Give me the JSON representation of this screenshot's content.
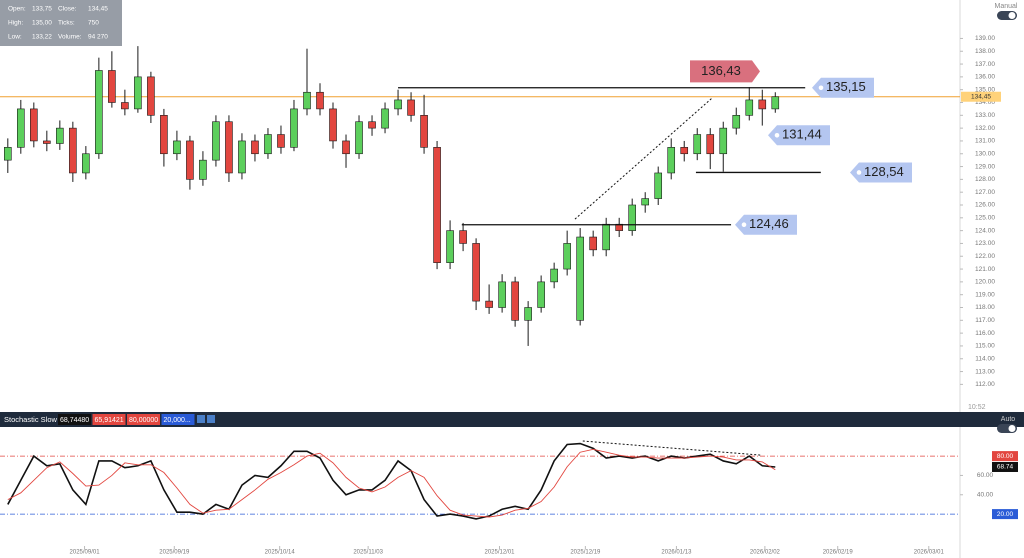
{
  "chart_data": [
    {
      "type": "candlestick",
      "colors": {
        "up": "#5ccf5c",
        "down": "#e2463f",
        "outline": "#1a1a1a",
        "last_price": "#f0a030"
      },
      "candles": [
        {
          "open": 129.5,
          "high": 131.2,
          "low": 128.5,
          "close": 130.5
        },
        {
          "open": 130.5,
          "high": 134.2,
          "low": 130.0,
          "close": 133.5
        },
        {
          "open": 133.5,
          "high": 134.0,
          "low": 130.5,
          "close": 131.0
        },
        {
          "open": 131.0,
          "high": 131.8,
          "low": 130.2,
          "close": 130.8
        },
        {
          "open": 130.8,
          "high": 132.6,
          "low": 130.3,
          "close": 132.0
        },
        {
          "open": 132.0,
          "high": 132.5,
          "low": 127.8,
          "close": 128.5
        },
        {
          "open": 128.5,
          "high": 130.6,
          "low": 128.0,
          "close": 130.0
        },
        {
          "open": 130.0,
          "high": 137.5,
          "low": 129.6,
          "close": 136.5
        },
        {
          "open": 136.5,
          "high": 138.0,
          "low": 133.6,
          "close": 134.0
        },
        {
          "open": 134.0,
          "high": 135.0,
          "low": 133.0,
          "close": 133.5
        },
        {
          "open": 133.5,
          "high": 138.4,
          "low": 133.2,
          "close": 136.0
        },
        {
          "open": 136.0,
          "high": 136.4,
          "low": 132.4,
          "close": 133.0
        },
        {
          "open": 133.0,
          "high": 133.5,
          "low": 129.0,
          "close": 130.0
        },
        {
          "open": 130.0,
          "high": 131.8,
          "low": 129.5,
          "close": 131.0
        },
        {
          "open": 131.0,
          "high": 131.4,
          "low": 127.2,
          "close": 128.0
        },
        {
          "open": 128.0,
          "high": 130.2,
          "low": 127.5,
          "close": 129.5
        },
        {
          "open": 129.5,
          "high": 133.0,
          "low": 129.0,
          "close": 132.5
        },
        {
          "open": 132.5,
          "high": 133.0,
          "low": 127.8,
          "close": 128.5
        },
        {
          "open": 128.5,
          "high": 131.6,
          "low": 128.0,
          "close": 131.0
        },
        {
          "open": 131.0,
          "high": 131.5,
          "low": 129.4,
          "close": 130.0
        },
        {
          "open": 130.0,
          "high": 132.0,
          "low": 129.6,
          "close": 131.5
        },
        {
          "open": 131.5,
          "high": 132.2,
          "low": 130.0,
          "close": 130.5
        },
        {
          "open": 130.5,
          "high": 134.2,
          "low": 130.2,
          "close": 133.5
        },
        {
          "open": 133.5,
          "high": 138.2,
          "low": 133.0,
          "close": 134.8
        },
        {
          "open": 134.8,
          "high": 135.5,
          "low": 133.0,
          "close": 133.5
        },
        {
          "open": 133.5,
          "high": 134.0,
          "low": 130.4,
          "close": 131.0
        },
        {
          "open": 131.0,
          "high": 131.5,
          "low": 128.9,
          "close": 130.0
        },
        {
          "open": 130.0,
          "high": 133.0,
          "low": 129.6,
          "close": 132.5
        },
        {
          "open": 132.5,
          "high": 133.0,
          "low": 131.4,
          "close": 132.0
        },
        {
          "open": 132.0,
          "high": 134.0,
          "low": 131.6,
          "close": 133.5
        },
        {
          "open": 133.5,
          "high": 135.0,
          "low": 133.0,
          "close": 134.2
        },
        {
          "open": 134.2,
          "high": 134.8,
          "low": 132.5,
          "close": 133.0
        },
        {
          "open": 133.0,
          "high": 134.6,
          "low": 130.0,
          "close": 130.5
        },
        {
          "open": 130.5,
          "high": 131.0,
          "low": 121.0,
          "close": 121.5
        },
        {
          "open": 121.5,
          "high": 124.8,
          "low": 121.0,
          "close": 124.0
        },
        {
          "open": 124.0,
          "high": 124.6,
          "low": 122.4,
          "close": 123.0
        },
        {
          "open": 123.0,
          "high": 123.4,
          "low": 117.8,
          "close": 118.5
        },
        {
          "open": 118.5,
          "high": 119.8,
          "low": 117.5,
          "close": 118.0
        },
        {
          "open": 118.0,
          "high": 120.6,
          "low": 117.6,
          "close": 120.0
        },
        {
          "open": 120.0,
          "high": 120.4,
          "low": 116.5,
          "close": 117.0
        },
        {
          "open": 117.0,
          "high": 118.5,
          "low": 115.0,
          "close": 118.0
        },
        {
          "open": 118.0,
          "high": 120.5,
          "low": 117.6,
          "close": 120.0
        },
        {
          "open": 120.0,
          "high": 121.5,
          "low": 119.5,
          "close": 121.0
        },
        {
          "open": 121.0,
          "high": 124.0,
          "low": 120.5,
          "close": 123.0
        },
        {
          "open": 117.0,
          "high": 124.2,
          "low": 116.6,
          "close": 123.5
        },
        {
          "open": 123.5,
          "high": 124.0,
          "low": 122.0,
          "close": 122.5
        },
        {
          "open": 122.5,
          "high": 125.0,
          "low": 122.0,
          "close": 124.5
        },
        {
          "open": 124.5,
          "high": 125.0,
          "low": 123.5,
          "close": 124.0
        },
        {
          "open": 124.0,
          "high": 126.5,
          "low": 123.6,
          "close": 126.0
        },
        {
          "open": 126.0,
          "high": 127.0,
          "low": 125.4,
          "close": 126.5
        },
        {
          "open": 126.5,
          "high": 129.0,
          "low": 126.0,
          "close": 128.5
        },
        {
          "open": 128.5,
          "high": 131.2,
          "low": 128.0,
          "close": 130.5
        },
        {
          "open": 130.5,
          "high": 131.0,
          "low": 129.4,
          "close": 130.0
        },
        {
          "open": 130.0,
          "high": 132.0,
          "low": 129.5,
          "close": 131.5
        },
        {
          "open": 131.5,
          "high": 132.0,
          "low": 128.8,
          "close": 130.0
        },
        {
          "open": 130.0,
          "high": 132.5,
          "low": 128.6,
          "close": 132.0
        },
        {
          "open": 132.0,
          "high": 133.6,
          "low": 131.5,
          "close": 133.0
        },
        {
          "open": 133.0,
          "high": 135.2,
          "low": 132.6,
          "close": 134.2
        },
        {
          "open": 134.2,
          "high": 135.0,
          "low": 132.2,
          "close": 133.5
        },
        {
          "open": 133.5,
          "high": 134.8,
          "low": 133.2,
          "close": 134.45
        }
      ],
      "xlim": [
        -0.6,
        73.2
      ],
      "xticks": [
        {
          "value": 5.9,
          "label": "2025/09/01"
        },
        {
          "value": 12.8,
          "label": "2025/09/19"
        },
        {
          "value": 20.9,
          "label": "2025/10/14"
        },
        {
          "value": 27.7,
          "label": "2025/11/03"
        },
        {
          "value": 37.8,
          "label": "2025/12/01"
        },
        {
          "value": 44.4,
          "label": "2025/12/19"
        },
        {
          "value": 51.4,
          "label": "2026/01/13"
        },
        {
          "value": 58.2,
          "label": "2026/02/02"
        },
        {
          "value": 63.8,
          "label": "2026/02/19"
        },
        {
          "value": 70.8,
          "label": "2026/03/01"
        }
      ],
      "ylim": [
        110,
        142
      ],
      "yticks": [
        {
          "value": 112,
          "label": "112.00"
        },
        {
          "value": 113,
          "label": "113.00"
        },
        {
          "value": 114,
          "label": "114.00"
        },
        {
          "value": 115,
          "label": "115.00"
        },
        {
          "value": 116,
          "label": "116.00"
        },
        {
          "value": 117,
          "label": "117.00"
        },
        {
          "value": 118,
          "label": "118.00"
        },
        {
          "value": 119,
          "label": "119.00"
        },
        {
          "value": 120,
          "label": "120.00"
        },
        {
          "value": 121,
          "label": "121.00"
        },
        {
          "value": 122,
          "label": "122.00"
        },
        {
          "value": 123,
          "label": "123.00"
        },
        {
          "value": 124,
          "label": "124.00"
        },
        {
          "value": 125,
          "label": "125.00"
        },
        {
          "value": 126,
          "label": "126.00"
        },
        {
          "value": 127,
          "label": "127.00"
        },
        {
          "value": 128,
          "label": "128.00"
        },
        {
          "value": 129,
          "label": "129.00"
        },
        {
          "value": 130,
          "label": "130.00"
        },
        {
          "value": 131,
          "label": "131.00"
        },
        {
          "value": 132,
          "label": "132.00"
        },
        {
          "value": 133,
          "label": "133.00"
        },
        {
          "value": 134,
          "label": "134.00"
        },
        {
          "value": 135,
          "label": "135.00"
        },
        {
          "value": 136,
          "label": "136.00"
        },
        {
          "value": 137,
          "label": "137.00"
        },
        {
          "value": 138,
          "label": "138.00"
        },
        {
          "value": 139,
          "label": "139.00"
        }
      ],
      "last_price": {
        "value": 134.45,
        "label": "134,45"
      },
      "levels": [
        {
          "value": 136.43,
          "label": "136,43",
          "color": "#d9707e"
        },
        {
          "value": 135.15,
          "label": "135,15",
          "color": "#b4c6f0",
          "x": [
            30.0,
            61.3
          ]
        },
        {
          "value": 131.44,
          "label": "131,44",
          "color": "#b4c6f0"
        },
        {
          "value": 128.54,
          "label": "128,54",
          "color": "#b4c6f0",
          "x": [
            52.9,
            62.5
          ]
        },
        {
          "value": 124.46,
          "label": "124,46",
          "color": "#b4c6f0",
          "x": [
            34.9,
            55.6
          ]
        }
      ],
      "trendlines": [
        {
          "x": [
            43.6,
            54.2
          ],
          "y": [
            124.9,
            134.4
          ]
        }
      ]
    },
    {
      "type": "line",
      "title": "Stochastic Slow",
      "header_values": [
        {
          "label": "68,74480",
          "color": "#111111"
        },
        {
          "label": "65,91421",
          "color": "#e2463f"
        },
        {
          "label": "80,00000",
          "color": "#e2463f"
        },
        {
          "label": "20,000...",
          "color": "#2a5bd7"
        }
      ],
      "series": [
        {
          "color": "#111111",
          "values": [
            30,
            55,
            80,
            70,
            72,
            45,
            30,
            75,
            75,
            68,
            70,
            75,
            45,
            22,
            22,
            20,
            30,
            25,
            50,
            60,
            58,
            70,
            85,
            85,
            78,
            55,
            40,
            45,
            45,
            55,
            75,
            65,
            35,
            18,
            20,
            18,
            15,
            18,
            25,
            28,
            25,
            45,
            75,
            92,
            93,
            88,
            78,
            80,
            78,
            80,
            75,
            80,
            78,
            80,
            82,
            75,
            72,
            80,
            70,
            68.74
          ]
        },
        {
          "color": "#e2463f",
          "values": [
            35,
            42,
            55,
            68,
            74,
            62,
            49,
            50,
            60,
            73,
            71,
            71,
            63,
            47,
            30,
            21,
            24,
            25,
            35,
            45,
            56,
            63,
            71,
            80,
            83,
            73,
            58,
            47,
            43,
            48,
            58,
            65,
            58,
            39,
            24,
            19,
            18,
            17,
            19,
            24,
            26,
            33,
            48,
            69,
            84,
            87,
            84,
            81,
            79,
            79,
            78,
            78,
            78,
            79,
            80,
            79,
            76,
            76,
            74,
            65.91
          ]
        }
      ],
      "ylim": [
        -13,
        107
      ],
      "yticks": [
        {
          "value": 40,
          "label": "40.00"
        },
        {
          "value": 60,
          "label": "60.00"
        }
      ],
      "levels": [
        {
          "value": 80,
          "label": "80.00",
          "color": "#e2463f"
        },
        {
          "value": 20,
          "label": "20.00",
          "color": "#2a5bd7"
        }
      ],
      "last_value": {
        "value": 68.74,
        "label": "68.74"
      },
      "trendlines": [
        {
          "x": [
            44.2,
            57.9
          ],
          "y": [
            95.6,
            81
          ]
        }
      ]
    }
  ],
  "info_box": {
    "rows": [
      [
        "Open:",
        "133,75",
        "Close:",
        "134,45"
      ],
      [
        "High:",
        "135,00",
        "Ticks:",
        "750"
      ],
      [
        "Low:",
        "133,22",
        "Volume:",
        "94 270"
      ]
    ]
  },
  "ui": {
    "manual": "Manual",
    "auto": "Auto",
    "time": "10:52"
  }
}
